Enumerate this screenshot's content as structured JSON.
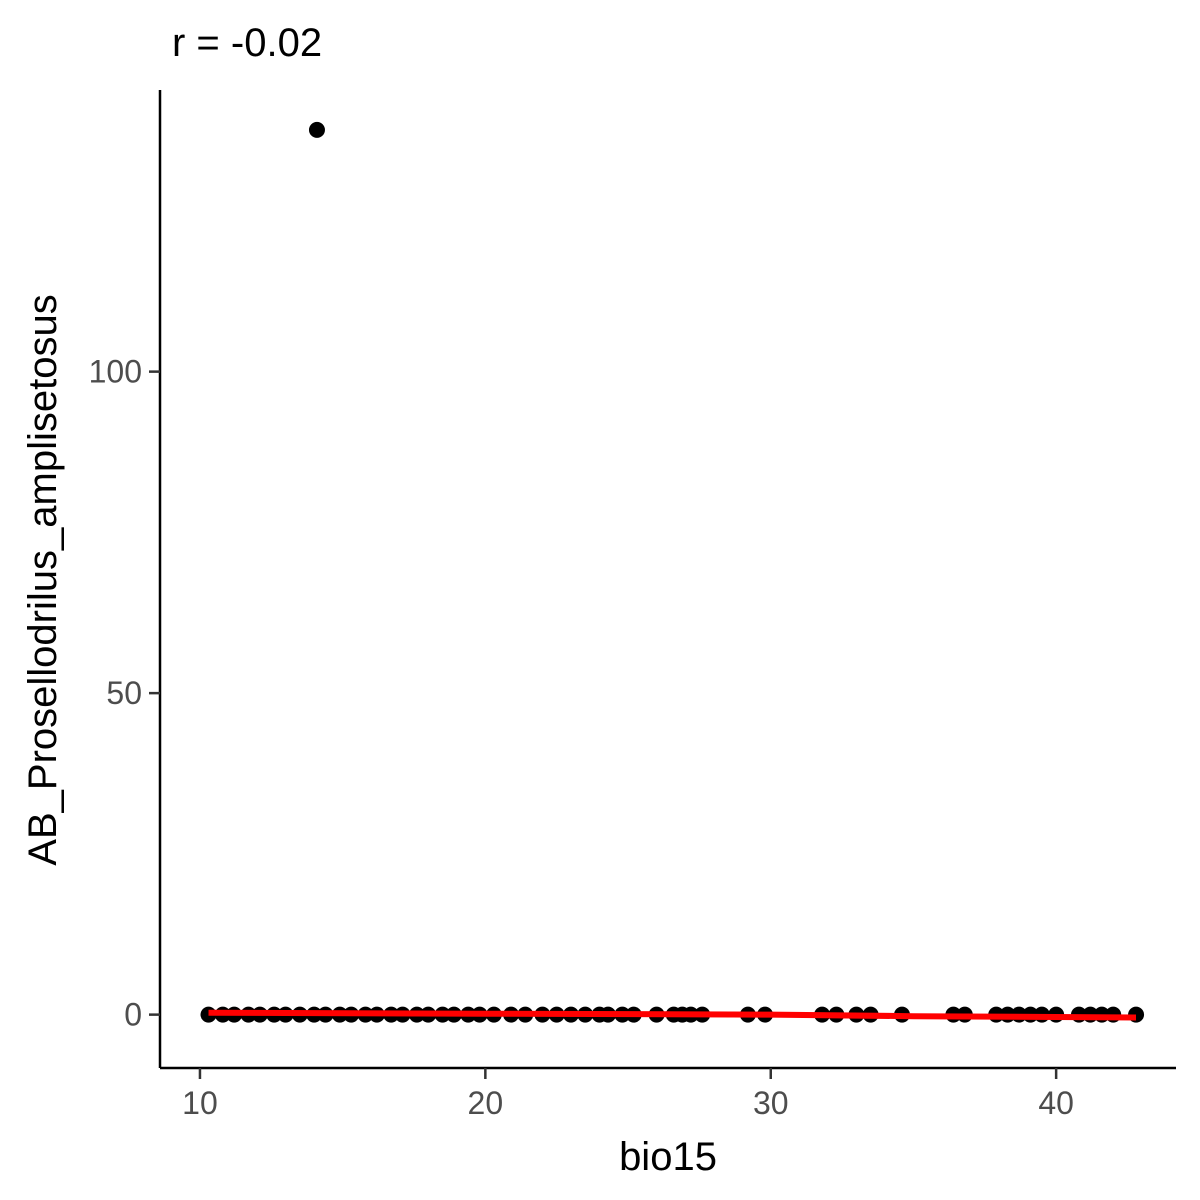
{
  "chart_data": {
    "type": "scatter",
    "title": "r = -0.02",
    "xlabel": "bio15",
    "ylabel": "AB_Prosellodrilus_amplisetosus",
    "xlim": [
      8.6,
      44.2
    ],
    "ylim": [
      -8.3,
      143.8
    ],
    "x_ticks": [
      10,
      20,
      30,
      40
    ],
    "y_ticks": [
      0,
      50,
      100
    ],
    "x_tick_labels": [
      "10",
      "20",
      "30",
      "40"
    ],
    "y_tick_labels": [
      "0",
      "50",
      "100"
    ],
    "grid": false,
    "legend": "none",
    "colors": {
      "points": "#000000",
      "fit_line": "#ff0000"
    },
    "series": [
      {
        "type": "scatter",
        "points": [
          [
            14.1,
            137.6
          ],
          [
            10.3,
            0
          ],
          [
            10.8,
            0
          ],
          [
            11.2,
            0
          ],
          [
            11.7,
            0
          ],
          [
            12.1,
            0
          ],
          [
            12.6,
            0
          ],
          [
            13.0,
            0
          ],
          [
            13.5,
            0
          ],
          [
            14.0,
            0
          ],
          [
            14.4,
            0
          ],
          [
            14.9,
            0
          ],
          [
            15.3,
            0
          ],
          [
            15.8,
            0
          ],
          [
            16.2,
            0
          ],
          [
            16.7,
            0
          ],
          [
            17.1,
            0
          ],
          [
            17.6,
            0
          ],
          [
            18.0,
            0
          ],
          [
            18.5,
            0
          ],
          [
            18.9,
            0
          ],
          [
            19.4,
            0
          ],
          [
            19.8,
            0
          ],
          [
            20.3,
            0
          ],
          [
            20.9,
            0
          ],
          [
            21.4,
            0
          ],
          [
            22.0,
            0
          ],
          [
            22.5,
            0
          ],
          [
            23.0,
            0
          ],
          [
            23.5,
            0
          ],
          [
            24.0,
            0
          ],
          [
            24.3,
            0
          ],
          [
            24.8,
            0
          ],
          [
            25.2,
            0
          ],
          [
            26.0,
            0
          ],
          [
            26.6,
            0
          ],
          [
            26.9,
            0
          ],
          [
            27.2,
            0
          ],
          [
            27.6,
            0
          ],
          [
            29.2,
            0
          ],
          [
            29.8,
            0
          ],
          [
            31.8,
            0
          ],
          [
            32.3,
            0
          ],
          [
            33.0,
            0
          ],
          [
            33.5,
            0
          ],
          [
            34.6,
            0
          ],
          [
            36.4,
            0
          ],
          [
            36.8,
            0
          ],
          [
            37.9,
            0
          ],
          [
            38.3,
            0
          ],
          [
            38.7,
            0
          ],
          [
            39.1,
            0
          ],
          [
            39.5,
            0
          ],
          [
            40.0,
            0
          ],
          [
            40.8,
            0
          ],
          [
            41.2,
            0
          ],
          [
            41.6,
            0
          ],
          [
            42.0,
            0
          ],
          [
            42.8,
            0
          ]
        ]
      },
      {
        "type": "line",
        "points": [
          [
            10.3,
            0.3
          ],
          [
            20.0,
            0.15
          ],
          [
            30.0,
            0.0
          ],
          [
            35.0,
            -0.25
          ],
          [
            42.8,
            -0.45
          ]
        ]
      }
    ]
  }
}
